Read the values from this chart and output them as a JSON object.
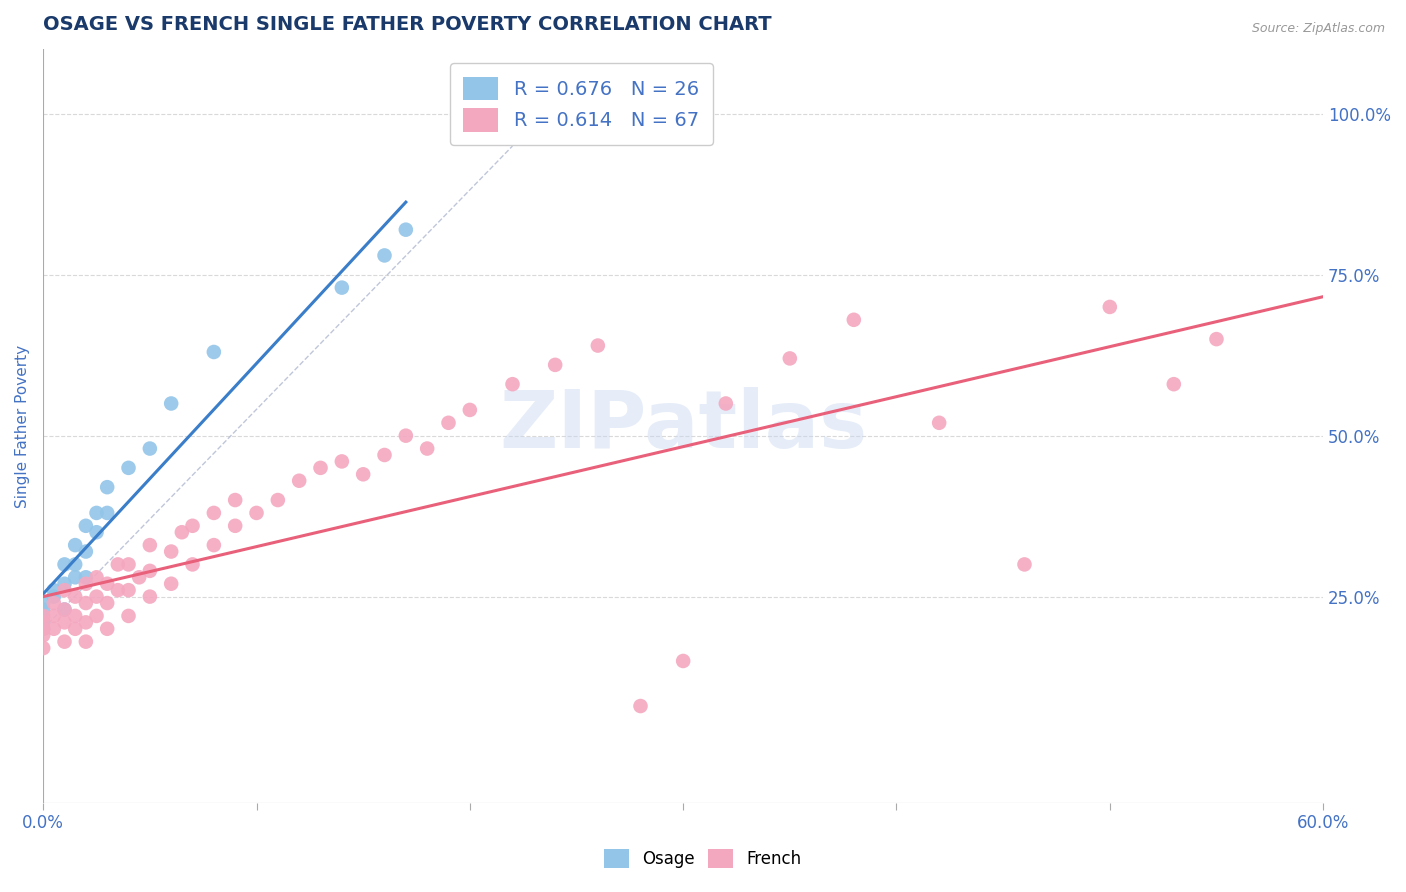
{
  "title": "OSAGE VS FRENCH SINGLE FATHER POVERTY CORRELATION CHART",
  "source_text": "Source: ZipAtlas.com",
  "ylabel": "Single Father Poverty",
  "xlim": [
    0.0,
    0.6
  ],
  "ylim": [
    -0.07,
    1.1
  ],
  "x_ticks": [
    0.0,
    0.1,
    0.2,
    0.3,
    0.4,
    0.5,
    0.6
  ],
  "x_tick_labels": [
    "0.0%",
    "",
    "",
    "",
    "",
    "",
    "60.0%"
  ],
  "y_ticks": [
    0.25,
    0.5,
    0.75,
    1.0
  ],
  "watermark": "ZIPatlas",
  "osage_color": "#92c5e8",
  "french_color": "#f4a8c0",
  "osage_line_color": "#3a7dc9",
  "french_line_color": "#e8607a",
  "osage_R": 0.676,
  "osage_N": 26,
  "french_R": 0.614,
  "french_N": 67,
  "osage_scatter_x": [
    0.0,
    0.0,
    0.0,
    0.0,
    0.005,
    0.005,
    0.01,
    0.01,
    0.01,
    0.015,
    0.015,
    0.015,
    0.02,
    0.02,
    0.02,
    0.025,
    0.025,
    0.03,
    0.03,
    0.04,
    0.05,
    0.06,
    0.08,
    0.14,
    0.16,
    0.17
  ],
  "osage_scatter_y": [
    0.21,
    0.23,
    0.24,
    0.2,
    0.25,
    0.26,
    0.23,
    0.27,
    0.3,
    0.28,
    0.3,
    0.33,
    0.28,
    0.32,
    0.36,
    0.35,
    0.38,
    0.38,
    0.42,
    0.45,
    0.48,
    0.55,
    0.63,
    0.73,
    0.78,
    0.82
  ],
  "french_scatter_x": [
    0.0,
    0.0,
    0.0,
    0.0,
    0.0,
    0.005,
    0.005,
    0.005,
    0.01,
    0.01,
    0.01,
    0.01,
    0.015,
    0.015,
    0.015,
    0.02,
    0.02,
    0.02,
    0.02,
    0.025,
    0.025,
    0.025,
    0.03,
    0.03,
    0.03,
    0.035,
    0.035,
    0.04,
    0.04,
    0.04,
    0.045,
    0.05,
    0.05,
    0.05,
    0.06,
    0.06,
    0.065,
    0.07,
    0.07,
    0.08,
    0.08,
    0.09,
    0.09,
    0.1,
    0.11,
    0.12,
    0.13,
    0.14,
    0.15,
    0.16,
    0.17,
    0.18,
    0.19,
    0.2,
    0.22,
    0.24,
    0.26,
    0.28,
    0.3,
    0.32,
    0.35,
    0.38,
    0.42,
    0.46,
    0.5,
    0.53,
    0.55
  ],
  "french_scatter_y": [
    0.21,
    0.22,
    0.2,
    0.19,
    0.17,
    0.22,
    0.2,
    0.24,
    0.18,
    0.21,
    0.23,
    0.26,
    0.2,
    0.22,
    0.25,
    0.18,
    0.21,
    0.24,
    0.27,
    0.22,
    0.25,
    0.28,
    0.2,
    0.24,
    0.27,
    0.26,
    0.3,
    0.22,
    0.26,
    0.3,
    0.28,
    0.25,
    0.29,
    0.33,
    0.27,
    0.32,
    0.35,
    0.3,
    0.36,
    0.33,
    0.38,
    0.36,
    0.4,
    0.38,
    0.4,
    0.43,
    0.45,
    0.46,
    0.44,
    0.47,
    0.5,
    0.48,
    0.52,
    0.54,
    0.58,
    0.61,
    0.64,
    0.08,
    0.15,
    0.55,
    0.62,
    0.68,
    0.52,
    0.3,
    0.7,
    0.58,
    0.65
  ],
  "title_color": "#1a3a6b",
  "tick_label_color": "#4472c4",
  "grid_color": "#d0d0d0",
  "background_color": "#ffffff",
  "legend_text_color": "#4472c4"
}
